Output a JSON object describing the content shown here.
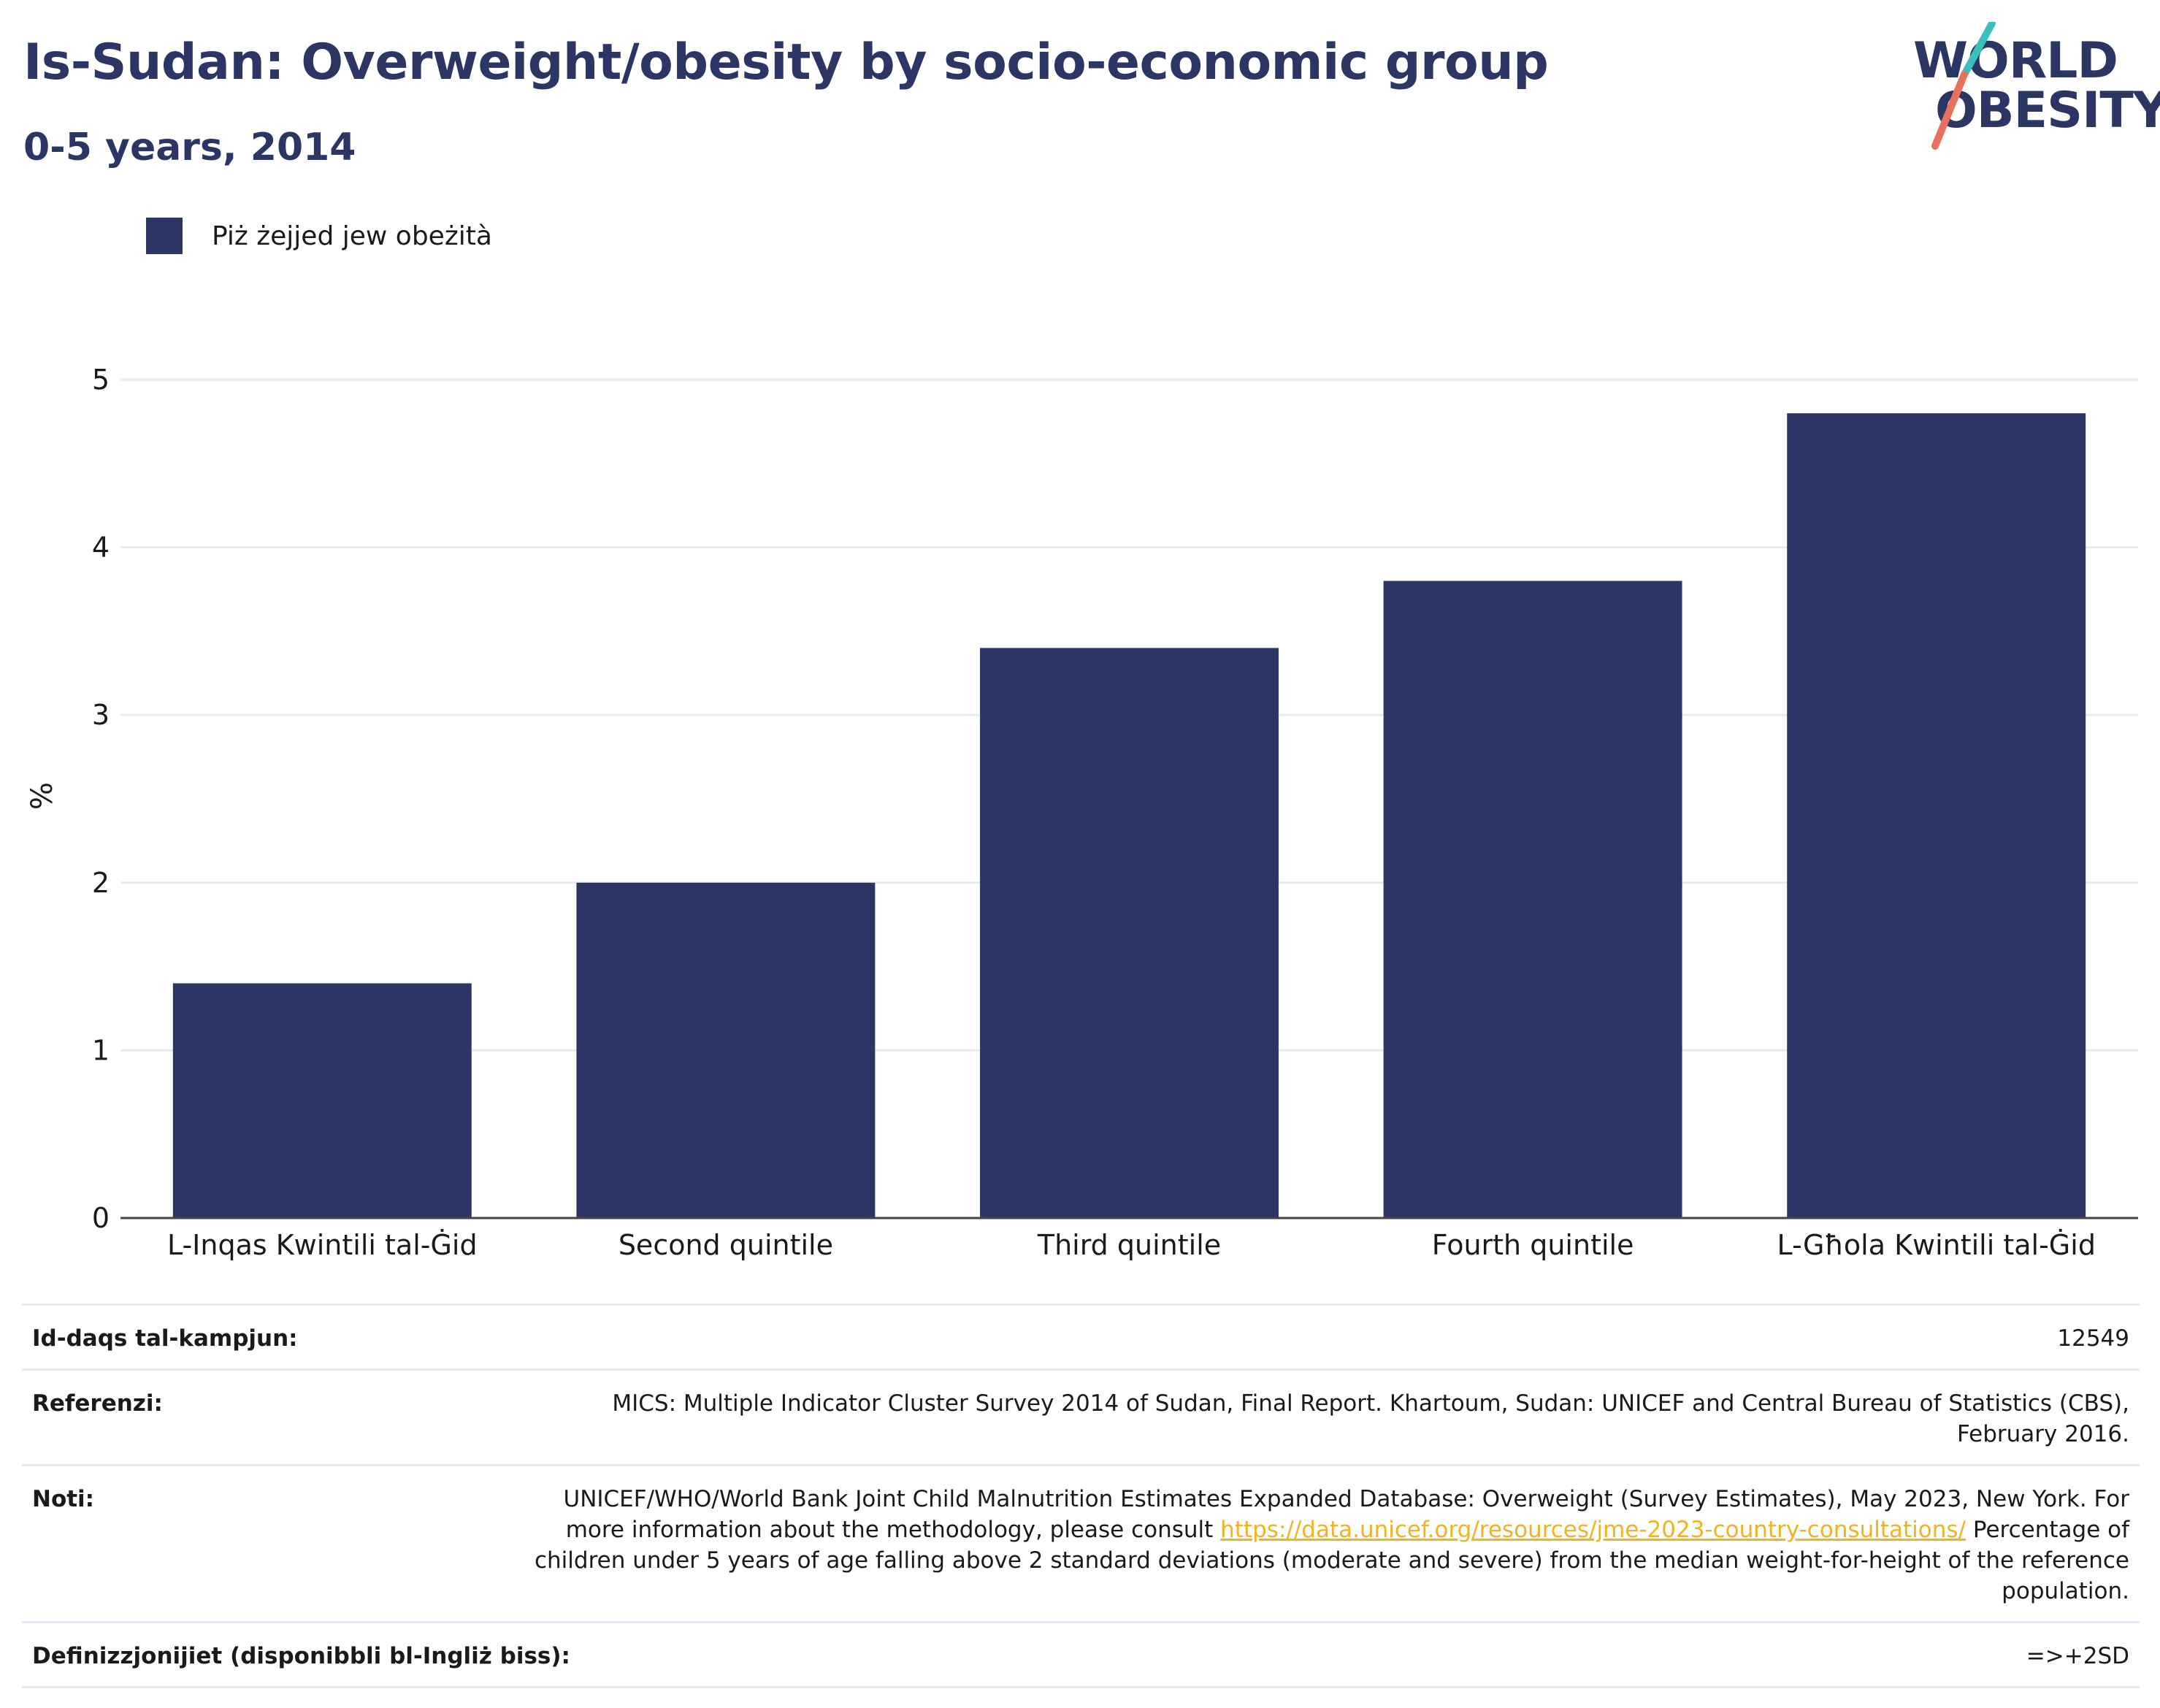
{
  "title": "Is-Sudan: Overweight/obesity by socio-economic group",
  "subtitle": "0-5 years, 2014",
  "logo": {
    "line1": "WORLD",
    "line2": "OBESITY"
  },
  "colors": {
    "bar": "#2b3664",
    "title": "#2b3664",
    "link": "#f0b323",
    "logo_teal": "#3bbfbd",
    "logo_coral": "#e8705f"
  },
  "legend": {
    "label": "Piż żejjed jew obeżità"
  },
  "chart_data": {
    "type": "bar",
    "categories": [
      "L-Inqas Kwintili tal-Ġid",
      "Second quintile",
      "Third quintile",
      "Fourth quintile",
      "L-Għola Kwintili tal-Ġid"
    ],
    "series": [
      {
        "name": "Piż żejjed jew obeżità",
        "values": [
          1.4,
          2.0,
          3.4,
          3.8,
          4.8
        ]
      }
    ],
    "ylabel": "%",
    "xlabel": "",
    "ylim": [
      0,
      5
    ],
    "yticks": [
      0,
      1,
      2,
      3,
      4,
      5
    ],
    "grid": true,
    "legend_position": "top-left"
  },
  "info": {
    "sample_size": {
      "label": "Id-daqs tal-kampjun:",
      "value": "12549"
    },
    "references": {
      "label": "Referenzi:",
      "value": "MICS: Multiple Indicator Cluster Survey 2014 of Sudan, Final Report. Khartoum, Sudan: UNICEF and Central Bureau of Statistics (CBS), February 2016."
    },
    "notes": {
      "label": "Noti:",
      "text_before": "UNICEF/WHO/World Bank Joint Child Malnutrition Estimates Expanded Database: Overweight (Survey Estimates), May 2023, New York. For more information about the methodology, please consult",
      "link": "https://data.unicef.org/resources/jme-2023-country-consultations/",
      "text_after": "Percentage of children under 5 years of age falling above 2 standard deviations (moderate and severe) from the median weight-for-height of the reference population."
    },
    "definitions": {
      "label": "Definizzjonijiet (disponibbli bl-Ingliż biss):",
      "value": "=>+2SD"
    }
  }
}
